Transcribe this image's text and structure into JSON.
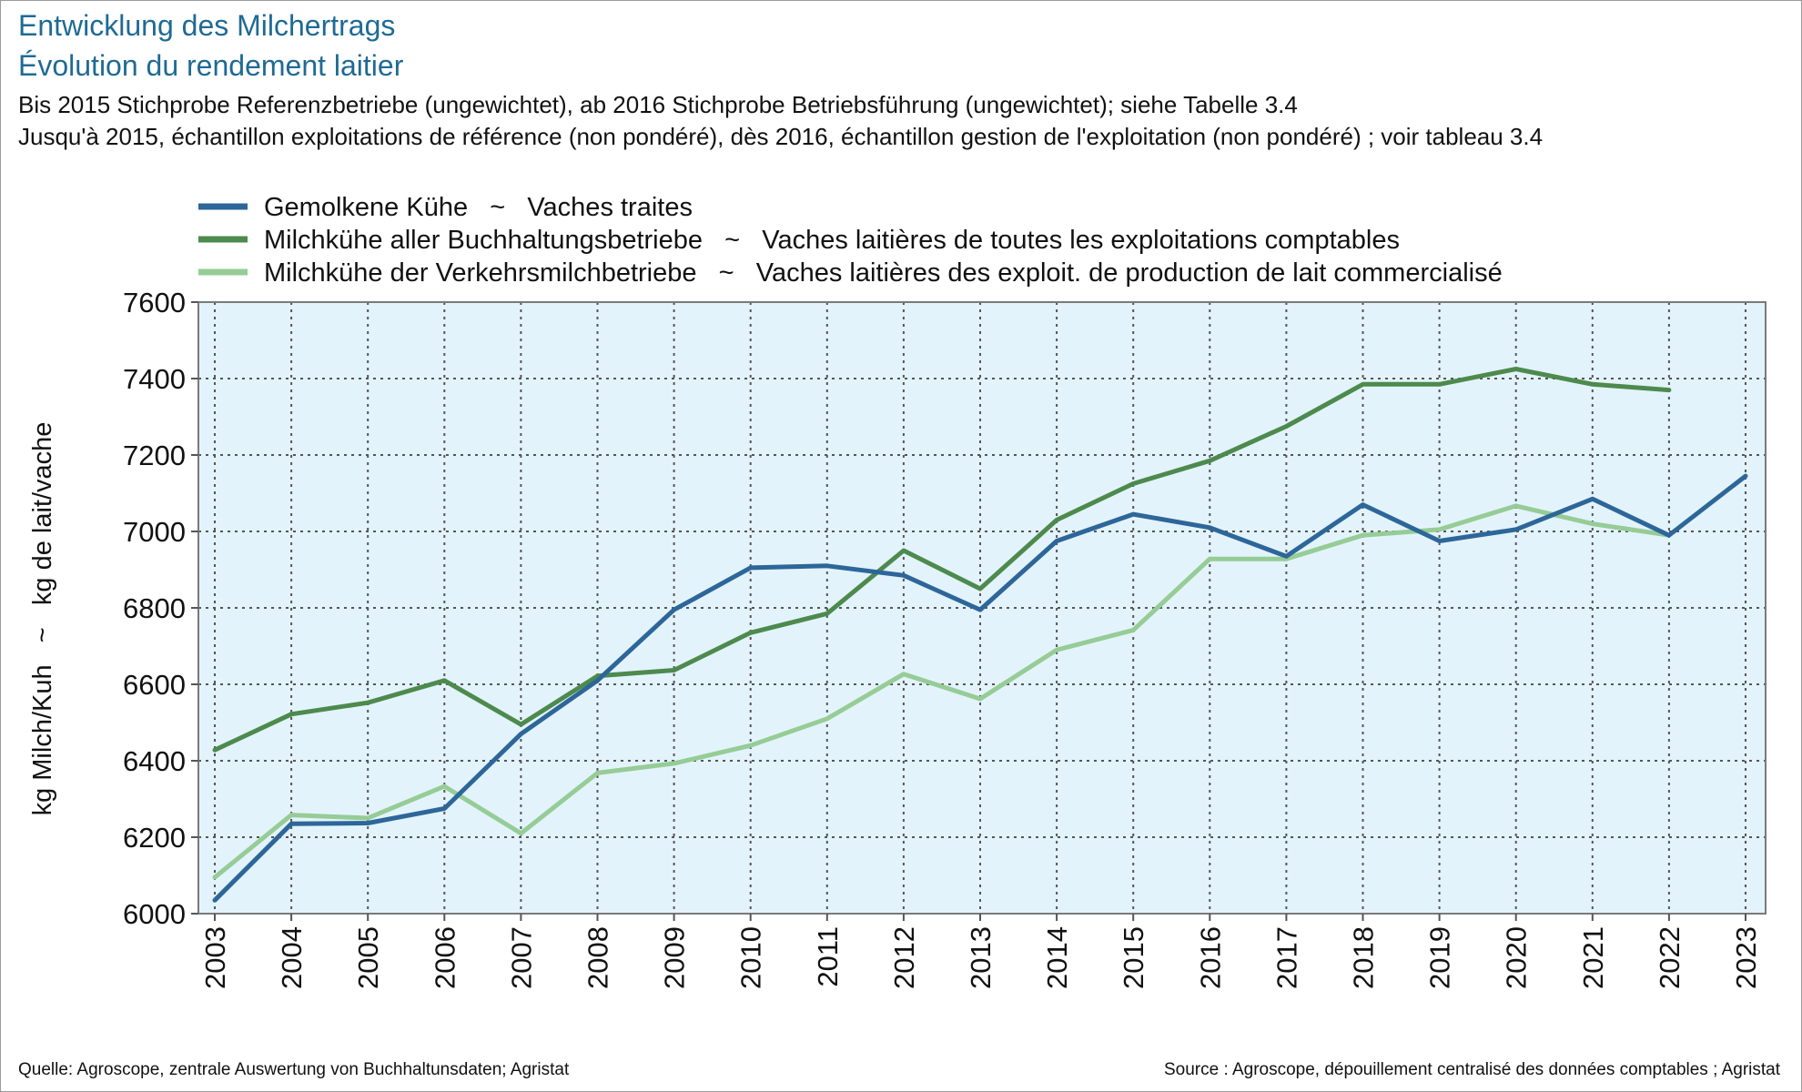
{
  "header": {
    "title_de": "Entwicklung des Milchertrags",
    "title_fr": "Évolution du rendement laitier",
    "subtitle_de": "Bis 2015 Stichprobe Referenzbetriebe (ungewichtet), ab 2016 Stichprobe Betriebsführung (ungewichtet); siehe Tabelle 3.4",
    "subtitle_fr": "Jusqu'à 2015, échantillon exploitations de référence (non pondéré), dès 2016, échantillon gestion de l'exploitation (non pondéré) ; voir tableau 3.4"
  },
  "footer": {
    "source_de": "Quelle: Agroscope, zentrale Auswertung von Buchhaltunsdaten; Agristat",
    "source_fr": "Source : Agroscope, dépouillement centralisé des données comptables ; Agristat"
  },
  "chart_data": {
    "type": "line",
    "ylabel": "kg Milch/Kuh   ~   kg de lait/vache",
    "xlabel": "",
    "ylim": [
      6000,
      7600
    ],
    "yticks": [
      6000,
      6200,
      6400,
      6600,
      6800,
      7000,
      7200,
      7400,
      7600
    ],
    "x": [
      "2003",
      "2004",
      "2005",
      "2006",
      "2007",
      "2008",
      "2009",
      "2010",
      "2011",
      "2012",
      "2013",
      "2014",
      "2015",
      "2016",
      "2017",
      "2018",
      "2019",
      "2020",
      "2021",
      "2022",
      "2023"
    ],
    "grid": true,
    "legend_position": "top-left",
    "plot_background": "#e3f3fc",
    "series": [
      {
        "name": "Gemolkene Kühe   ~   Vaches traites",
        "color": "#2d6699",
        "values": [
          6035,
          6235,
          6237,
          6275,
          6470,
          6610,
          6795,
          6905,
          6910,
          6885,
          6795,
          6975,
          7045,
          7010,
          6935,
          7070,
          6975,
          7005,
          7085,
          6990,
          7145
        ]
      },
      {
        "name": "Milchkühe aller Buchhaltungsbetriebe   ~   Vaches laitières de toutes les exploitations comptables",
        "color": "#4d8a4d",
        "values": [
          6428,
          6522,
          6552,
          6610,
          6495,
          6622,
          6637,
          6735,
          6785,
          6950,
          6850,
          7030,
          7125,
          7185,
          7275,
          7385,
          7385,
          7425,
          7385,
          7370,
          null
        ]
      },
      {
        "name": "Milchkühe der Verkehrsmilchbetriebe   ~   Vaches laitières des exploit. de production de lait commercialisé",
        "color": "#96cc96",
        "values": [
          6095,
          6258,
          6250,
          6333,
          6210,
          6368,
          6393,
          6440,
          6510,
          6627,
          6562,
          6690,
          6742,
          6928,
          6928,
          6990,
          7005,
          7067,
          7020,
          6990,
          null
        ]
      }
    ]
  }
}
